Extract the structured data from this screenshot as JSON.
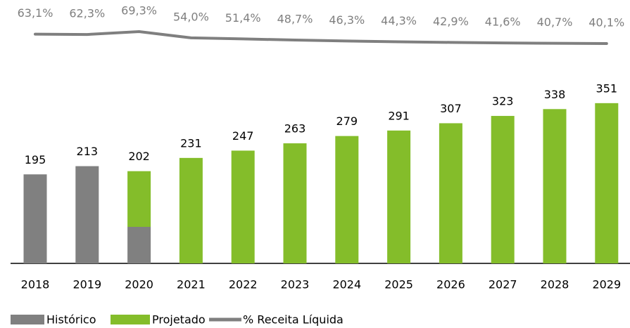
{
  "chart_data": {
    "type": "bar",
    "categories": [
      "2018",
      "2019",
      "2020",
      "2021",
      "2022",
      "2023",
      "2024",
      "2025",
      "2026",
      "2027",
      "2028",
      "2029"
    ],
    "series": [
      {
        "name": "Histórico",
        "color": "#808080",
        "values": [
          195,
          213,
          80,
          null,
          null,
          null,
          null,
          null,
          null,
          null,
          null,
          null
        ]
      },
      {
        "name": "Projetado",
        "color": "#84bd2a",
        "values": [
          null,
          null,
          122,
          231,
          247,
          263,
          279,
          291,
          307,
          323,
          338,
          351
        ]
      }
    ],
    "totals": [
      195,
      213,
      202,
      231,
      247,
      263,
      279,
      291,
      307,
      323,
      338,
      351
    ],
    "line": {
      "name": "% Receita Líquida",
      "color": "#7f7f7f",
      "values": [
        63.1,
        62.3,
        69.3,
        54.0,
        51.4,
        48.7,
        46.3,
        44.3,
        42.9,
        41.6,
        40.7,
        40.1
      ],
      "value_labels": [
        "63,1%",
        "62,3%",
        "69,3%",
        "54,0%",
        "51,4%",
        "48,7%",
        "46,3%",
        "44,3%",
        "42,9%",
        "41,6%",
        "40,7%",
        "40,1%"
      ]
    }
  }
}
